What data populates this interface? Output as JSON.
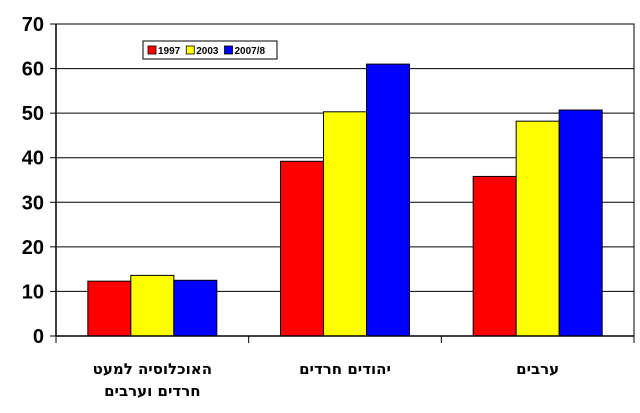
{
  "chart_data": {
    "type": "bar",
    "categories": [
      [
        "האוכלוסיה למעט",
        "חרדים וערבים"
      ],
      [
        "יהודים חרדים"
      ],
      [
        "ערבים"
      ]
    ],
    "series": [
      {
        "name": "1997",
        "color": "#ff0000",
        "values": [
          12.3,
          39.2,
          35.8
        ]
      },
      {
        "name": "2003",
        "color": "#ffff00",
        "values": [
          13.6,
          50.3,
          48.2
        ]
      },
      {
        "name": "2007/8",
        "color": "#0000ff",
        "values": [
          12.5,
          61.0,
          50.7
        ]
      }
    ],
    "ylim": [
      0,
      70
    ],
    "yticks": [
      0,
      10,
      20,
      30,
      40,
      50,
      60,
      70
    ],
    "grid": true,
    "legend": "top-left inside plot",
    "title": "",
    "xlabel": "",
    "ylabel": ""
  }
}
